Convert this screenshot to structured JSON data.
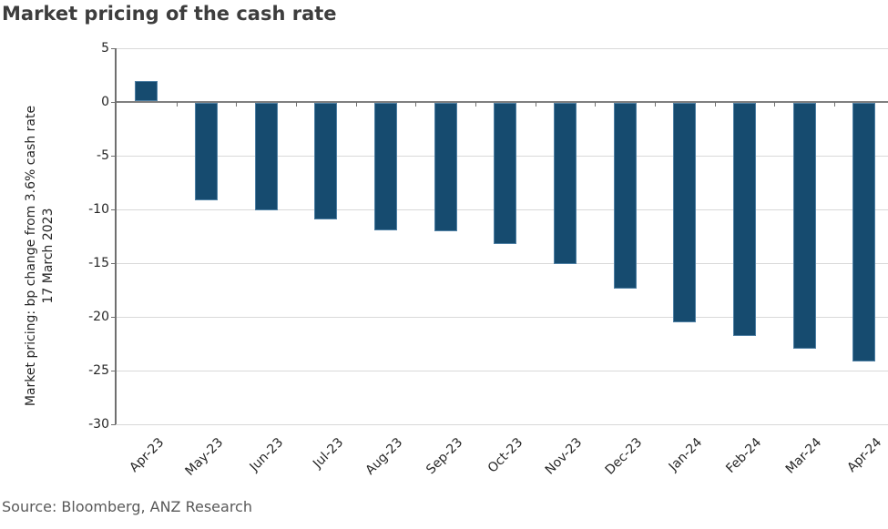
{
  "chart_data": {
    "type": "bar",
    "title": "Market pricing of the cash rate",
    "categories": [
      "Apr-23",
      "May-23",
      "Jun-23",
      "Jul-23",
      "Aug-23",
      "Sep-23",
      "Oct-23",
      "Nov-23",
      "Dec-23",
      "Jan-24",
      "Feb-24",
      "Mar-24",
      "Apr-24"
    ],
    "values": [
      1.9,
      -9.1,
      -10.0,
      -10.9,
      -11.9,
      -12.0,
      -13.2,
      -15.0,
      -17.3,
      -20.5,
      -21.7,
      -22.9,
      -24.1
    ],
    "ylabel_line1": "Market pricing: bp change from 3.6% cash rate",
    "ylabel_line2": "17 March 2023",
    "xlabel": "",
    "ylim": [
      -30,
      5
    ],
    "ytick_step": 5,
    "yticks": [
      5,
      0,
      -5,
      -10,
      -15,
      -20,
      -25,
      -30
    ],
    "grid": "horizontal",
    "legend": "none",
    "source": "Source: Bloomberg, ANZ Research"
  },
  "colors": {
    "bar_fill": "#164b6f",
    "bar_border": "#4e7fa3",
    "axis_line": "#6f6f6f",
    "zero_line": "#7f7f7f",
    "gridline": "#d9d9d9",
    "title_text": "#3d3d3d",
    "axis_text": "#262626",
    "source_text": "#595959"
  }
}
